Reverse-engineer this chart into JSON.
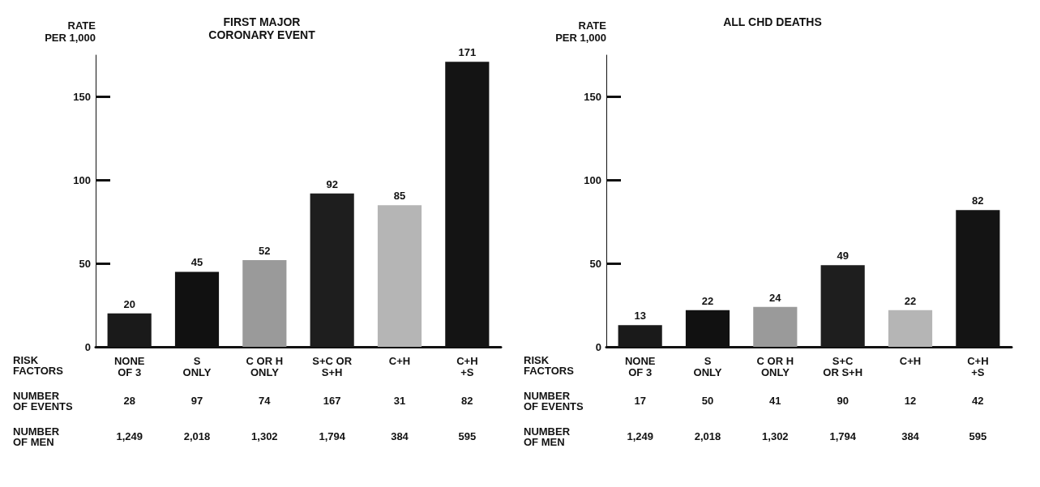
{
  "chart_data": [
    {
      "type": "bar",
      "title": "FIRST MAJOR\nCORONARY EVENT",
      "ylabel": "RATE\nPER 1,000",
      "categories": [
        "NONE\nOF 3",
        "S\nONLY",
        "C OR H\nONLY",
        "S+C OR\nS+H",
        "C+H",
        "C+H\n+S"
      ],
      "values": [
        20,
        45,
        52,
        92,
        85,
        171
      ],
      "colors": [
        "#1a1a1a",
        "#111111",
        "#9a9a9a",
        "#1e1e1e",
        "#b5b5b5",
        "#141414"
      ],
      "ylim": [
        0,
        175
      ],
      "yticks": [
        0,
        50,
        100,
        150
      ],
      "grid": false,
      "data_labels": true,
      "annotations": [
        "RISK\nFACTORS",
        "NUMBER\nOF EVENTS",
        "NUMBER\nOF MEN",
        "28",
        "97",
        "74",
        "167",
        "31",
        "82",
        "1,249",
        "2,018",
        "1,302",
        "1,794",
        "384",
        "595"
      ]
    },
    {
      "type": "bar",
      "title": "ALL CHD DEATHS",
      "ylabel": "RATE\nPER 1,000",
      "categories": [
        "NONE\nOF 3",
        "S\nONLY",
        "C OR H\nONLY",
        "S+C\nOR S+H",
        "C+H",
        "C+H\n+S"
      ],
      "values": [
        13,
        22,
        24,
        49,
        22,
        82
      ],
      "colors": [
        "#1a1a1a",
        "#111111",
        "#9a9a9a",
        "#1e1e1e",
        "#b5b5b5",
        "#141414"
      ],
      "ylim": [
        0,
        175
      ],
      "yticks": [
        0,
        50,
        100,
        150
      ],
      "grid": false,
      "data_labels": true,
      "annotations": [
        "RISK\nFACTORS",
        "NUMBER\nOF EVENTS",
        "NUMBER\nOF MEN",
        "17",
        "50",
        "41",
        "90",
        "12",
        "42",
        "1,249",
        "2,018",
        "1,302",
        "1,794",
        "384",
        "595"
      ]
    }
  ]
}
